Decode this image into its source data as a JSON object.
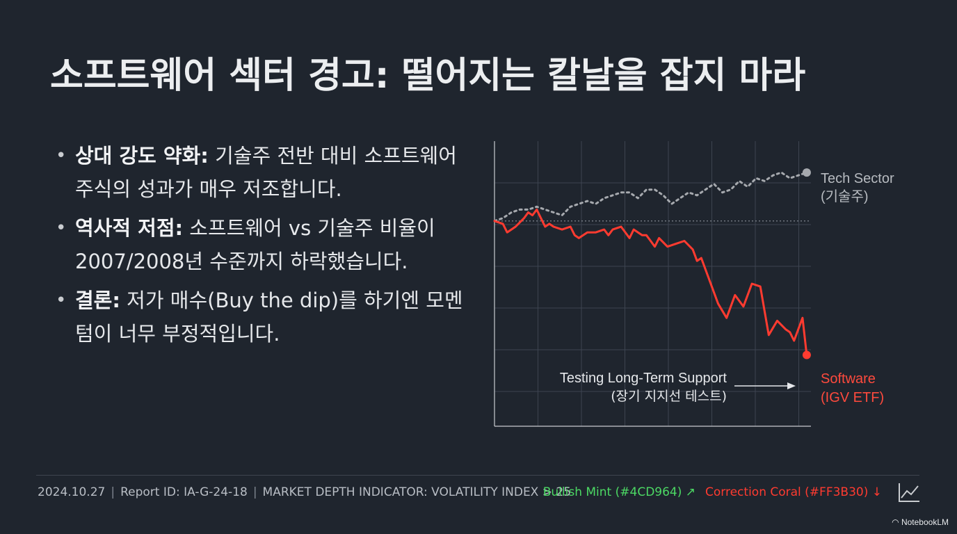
{
  "title": "소프트웨어 섹터 경고: 떨어지는 칼날을 잡지 마라",
  "bullets": [
    {
      "bold": "상대 강도 약화:",
      "text": " 기술주 전반 대비 소프트웨어 주식의 성과가 매우 저조합니다."
    },
    {
      "bold": "역사적 저점:",
      "text": " 소프트웨어 vs 기술주 비율이 2007/2008년 수준까지 하락했습니다."
    },
    {
      "bold": "결론:",
      "text": " 저가 매수(Buy the dip)를 하기엔 모멘텀이 너무 부정적입니다."
    }
  ],
  "chart_data": {
    "type": "line",
    "xlim": [
      0,
      75
    ],
    "ylim": [
      0,
      100
    ],
    "grid": true,
    "reference_line_y": 72,
    "series": [
      {
        "name": "Tech Sector (기술주)",
        "color": "#a6a9ae",
        "style": "dotted",
        "x": [
          0,
          2,
          4,
          6,
          8,
          10,
          12,
          14,
          16,
          18,
          20,
          22,
          24,
          26,
          28,
          30,
          32,
          34,
          36,
          38,
          40,
          42,
          44,
          46,
          48,
          50,
          52,
          54,
          56,
          58,
          60,
          62,
          64,
          66,
          68,
          70,
          72,
          74
        ],
        "y": [
          72,
          73,
          75,
          76,
          76,
          77,
          76,
          75,
          74,
          77,
          78,
          79,
          78,
          80,
          81,
          82,
          82,
          80,
          83,
          83,
          81,
          78,
          80,
          82,
          81,
          83,
          85,
          82,
          83,
          86,
          84,
          87,
          86,
          88,
          89,
          87,
          88,
          89
        ]
      },
      {
        "name": "Software (IGV ETF)",
        "color": "#ff3b30",
        "style": "solid",
        "x": [
          0,
          2,
          3,
          5,
          7,
          8,
          9,
          10,
          11,
          12,
          13,
          14,
          16,
          18,
          19,
          20,
          22,
          24,
          26,
          27,
          28,
          30,
          32,
          33,
          35,
          36,
          37,
          38,
          39,
          41,
          43,
          45,
          47,
          48,
          49,
          51,
          53,
          55,
          57,
          59,
          61,
          63,
          65,
          67,
          69,
          70,
          71,
          73,
          74
        ],
        "y": [
          72,
          71,
          68,
          70,
          73,
          75,
          74,
          76,
          73,
          70,
          71,
          70,
          69,
          70,
          67,
          66,
          68,
          68,
          69,
          67,
          69,
          70,
          66,
          69,
          67,
          67,
          65,
          63,
          66,
          63,
          64,
          65,
          62,
          58,
          59,
          51,
          43,
          38,
          46,
          42,
          50,
          49,
          32,
          37,
          34,
          33,
          30,
          38,
          25
        ]
      }
    ],
    "annotation": {
      "line1": "Testing Long-Term Support",
      "line2": "(장기 지지선 테스트)"
    },
    "labels": {
      "tech_line1": "Tech Sector",
      "tech_line2": "(기술주)",
      "soft_line1": "Software",
      "soft_line2": "(IGV ETF)"
    }
  },
  "footer": {
    "date": "2024.10.27",
    "report_id": "Report ID: IA-G-24-18",
    "indicator": "MARKET DEPTH INDICATOR: VOLATILITY INDEX > 25",
    "mint_label": "Bullish Mint (#4CD964) ↗",
    "coral_label": "Correction Coral (#FF3B30) ↓",
    "mint_color": "#4CD964",
    "coral_color": "#FF3B30",
    "icon": "trend-line-icon"
  },
  "brand": "NotebookLM"
}
